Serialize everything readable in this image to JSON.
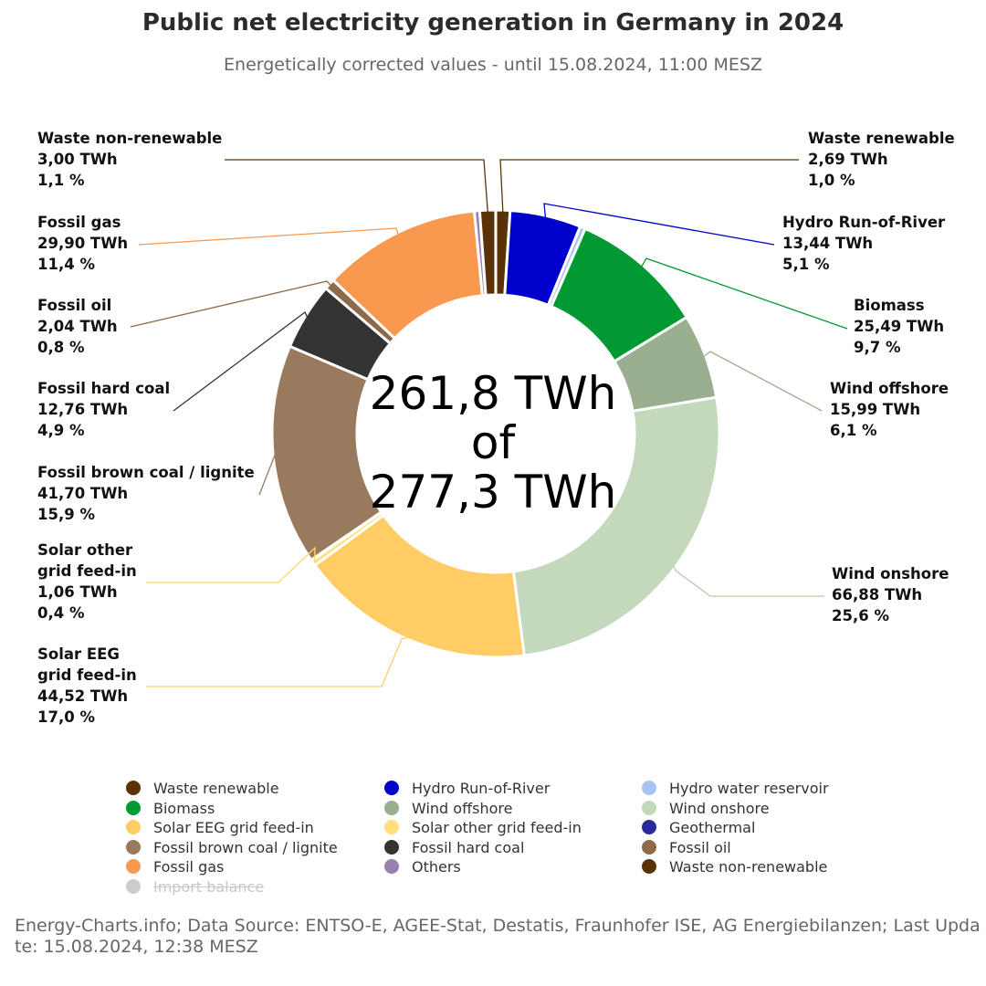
{
  "chart_data": {
    "type": "pie",
    "title": "Public net electricity generation in Germany in 2024",
    "subtitle": "Energetically corrected values - until 15.08.2024, 11:00 MESZ",
    "center_line1": "261,8 TWh",
    "center_line2": "of",
    "center_line3": "277,3 TWh",
    "unit": "TWh",
    "slices": [
      {
        "key": "waste_renewable",
        "name": "Waste renewable",
        "value": 2.69,
        "value_label": "2,69 TWh",
        "percent_label": "1,0 %",
        "color": "#5a3208"
      },
      {
        "key": "hydro_ror",
        "name": "Hydro Run-of-River",
        "value": 13.44,
        "value_label": "13,44 TWh",
        "percent_label": "5,1 %",
        "color": "#0000cc"
      },
      {
        "key": "hydro_res",
        "name": "Hydro water reservoir",
        "value": 1.0,
        "color": "#a8c4f0"
      },
      {
        "key": "biomass",
        "name": "Biomass",
        "value": 25.49,
        "value_label": "25,49 TWh",
        "percent_label": "9,7 %",
        "color": "#009933"
      },
      {
        "key": "wind_off",
        "name": "Wind offshore",
        "value": 15.99,
        "value_label": "15,99 TWh",
        "percent_label": "6,1 %",
        "color": "#9aae90"
      },
      {
        "key": "wind_on",
        "name": "Wind onshore",
        "value": 66.88,
        "value_label": "66,88 TWh",
        "percent_label": "25,6 %",
        "color": "#c4d9bc"
      },
      {
        "key": "solar_eeg",
        "name": "Solar EEG grid feed-in",
        "value": 44.52,
        "value_label": "44,52 TWh",
        "percent_label": "17,0 %",
        "color": "#ffcc66"
      },
      {
        "key": "solar_other",
        "name": "Solar other grid feed-in",
        "value": 1.06,
        "value_label": "1,06 TWh",
        "percent_label": "0,4 %",
        "color": "#ffe07a"
      },
      {
        "key": "geothermal",
        "name": "Geothermal",
        "value": 0.15,
        "color": "#2a2a99"
      },
      {
        "key": "lignite",
        "name": "Fossil brown coal / lignite",
        "value": 41.7,
        "value_label": "41,70 TWh",
        "percent_label": "15,9 %",
        "color": "#997a5e"
      },
      {
        "key": "hard_coal",
        "name": "Fossil hard coal",
        "value": 12.76,
        "value_label": "12,76 TWh",
        "percent_label": "4,9 %",
        "color": "#333333"
      },
      {
        "key": "oil",
        "name": "Fossil oil",
        "value": 2.04,
        "value_label": "2,04 TWh",
        "percent_label": "0,8 %",
        "color": "#8c6a4a"
      },
      {
        "key": "gas",
        "name": "Fossil gas",
        "value": 29.9,
        "value_label": "29,90 TWh",
        "percent_label": "11,4 %",
        "color": "#f99950"
      },
      {
        "key": "others",
        "name": "Others",
        "value": 1.0,
        "color": "#9980b3"
      },
      {
        "key": "waste_nonren",
        "name": "Waste non-renewable",
        "value": 3.0,
        "value_label": "3,00 TWh",
        "percent_label": "1,1 %",
        "color": "#5a3208"
      }
    ],
    "legend": [
      {
        "name": "Waste renewable",
        "color": "#5a3208",
        "enabled": true
      },
      {
        "name": "Hydro Run-of-River",
        "color": "#0000cc",
        "enabled": true
      },
      {
        "name": "Hydro water reservoir",
        "color": "#a8c4f0",
        "enabled": true
      },
      {
        "name": "Biomass",
        "color": "#009933",
        "enabled": true
      },
      {
        "name": "Wind offshore",
        "color": "#9aae90",
        "enabled": true
      },
      {
        "name": "Wind onshore",
        "color": "#c4d9bc",
        "enabled": true
      },
      {
        "name": "Solar EEG grid feed-in",
        "color": "#ffcc66",
        "enabled": true
      },
      {
        "name": "Solar other grid feed-in",
        "color": "#ffe07a",
        "enabled": true
      },
      {
        "name": "Geothermal",
        "color": "#2a2a99",
        "enabled": true
      },
      {
        "name": "Fossil brown coal / lignite",
        "color": "#997a5e",
        "enabled": true
      },
      {
        "name": "Fossil hard coal",
        "color": "#333333",
        "enabled": true
      },
      {
        "name": "Fossil oil",
        "color": "#8c6a4a",
        "enabled": true
      },
      {
        "name": "Fossil gas",
        "color": "#f99950",
        "enabled": true
      },
      {
        "name": "Others",
        "color": "#9980b3",
        "enabled": true
      },
      {
        "name": "Waste non-renewable",
        "color": "#5a3208",
        "enabled": true
      },
      {
        "name": "Import balance",
        "color": "#cccccc",
        "enabled": false
      }
    ]
  },
  "labels": {
    "waste_nonren": {
      "l1": "Waste non-renewable",
      "l2": "3,00 TWh",
      "l3": "1,1 %"
    },
    "waste_renewable": {
      "l1": "Waste renewable",
      "l2": "2,69 TWh",
      "l3": "1,0 %"
    },
    "gas": {
      "l1": "Fossil gas",
      "l2": "29,90 TWh",
      "l3": "11,4 %"
    },
    "hydro_ror": {
      "l1": "Hydro Run-of-River",
      "l2": "13,44 TWh",
      "l3": "5,1 %"
    },
    "oil": {
      "l1": "Fossil oil",
      "l2": "2,04 TWh",
      "l3": "0,8 %"
    },
    "biomass": {
      "l1": "Biomass",
      "l2": "25,49 TWh",
      "l3": "9,7 %"
    },
    "hard_coal": {
      "l1": "Fossil hard coal",
      "l2": "12,76 TWh",
      "l3": "4,9 %"
    },
    "wind_off": {
      "l1": "Wind offshore",
      "l2": "15,99 TWh",
      "l3": "6,1 %"
    },
    "lignite": {
      "l1": "Fossil brown coal / lignite",
      "l2": "41,70 TWh",
      "l3": "15,9 %"
    },
    "solar_other": {
      "l1": "Solar other",
      "l2": "grid feed-in",
      "l3": "1,06 TWh",
      "l4": "0,4 %"
    },
    "wind_on": {
      "l1": "Wind onshore",
      "l2": "66,88 TWh",
      "l3": "25,6 %"
    },
    "solar_eeg": {
      "l1": "Solar EEG",
      "l2": "grid feed-in",
      "l3": "44,52 TWh",
      "l4": "17,0 %"
    }
  },
  "footer": "Energy-Charts.info; Data Source: ENTSO-E, AGEE-Stat, Destatis, Fraunhofer ISE, AG Energiebilanzen; Last Update: 15.08.2024, 12:38 MESZ"
}
